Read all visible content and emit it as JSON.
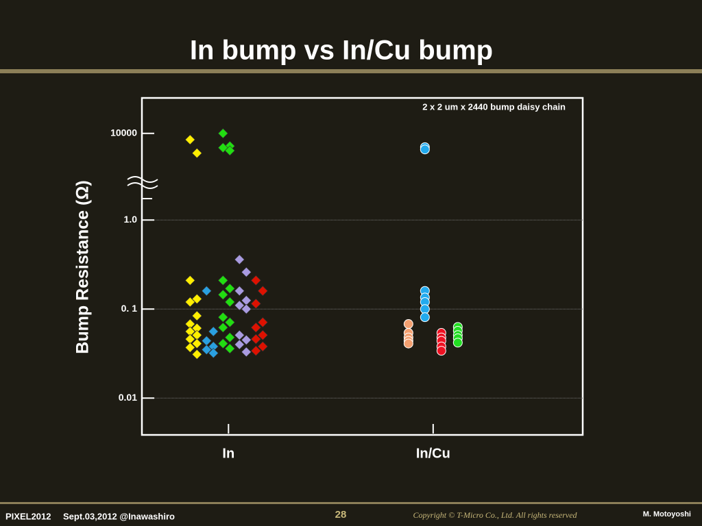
{
  "title": "In  bump vs In/Cu bump",
  "chart_data": {
    "type": "strip",
    "y_label": "Bump Resistance (Ω)",
    "annotation": "2 x 2 um x 2440 bump daisy chain",
    "log_y": true,
    "ylim": [
      0.004,
      25000
    ],
    "y_break": [
      1.5,
      4000
    ],
    "yticks": [
      0.01,
      {
        "value": 0.1,
        "label": "0. 1"
      },
      {
        "value": 1,
        "label": "1.0"
      },
      10000
    ],
    "grid": true,
    "categories": [
      "In",
      "In/Cu"
    ],
    "groups": [
      {
        "series": [
          {
            "color": "#ffee00",
            "marker": "diamond",
            "values": [
              8500,
              6000,
              0.21,
              0.13,
              0.12,
              0.084,
              0.068,
              0.061,
              0.056,
              0.051,
              0.046,
              0.041,
              0.037,
              0.031
            ]
          },
          {
            "color": "#2aa0e0",
            "marker": "diamond",
            "values": [
              0.16,
              0.056,
              0.044,
              0.038,
              0.035,
              0.032
            ]
          },
          {
            "color": "#22dd11",
            "marker": "diamond",
            "values": [
              10000,
              7200,
              6900,
              6400,
              0.21,
              0.17,
              0.145,
              0.12,
              0.081,
              0.071,
              0.062,
              0.048,
              0.041,
              0.036
            ]
          },
          {
            "color": "#a99be0",
            "marker": "diamond",
            "values": [
              0.36,
              0.26,
              0.16,
              0.125,
              0.11,
              0.1,
              0.051,
              0.045,
              0.04,
              0.033
            ]
          },
          {
            "color": "#dd1100",
            "marker": "diamond",
            "values": [
              0.21,
              0.16,
              0.115,
              0.071,
              0.062,
              0.051,
              0.046,
              0.038,
              0.034
            ]
          }
        ]
      },
      {
        "series": [
          {
            "color": "#f4a070",
            "marker": "circle",
            "values": [
              0.068,
              0.054,
              0.048,
              0.044,
              0.041
            ]
          },
          {
            "color": "#22aaee",
            "marker": "circle",
            "values": [
              7000,
              6600,
              0.16,
              0.135,
              0.12,
              0.1,
              0.081
            ]
          },
          {
            "color": "#ee1122",
            "marker": "circle",
            "values": [
              0.054,
              0.048,
              0.044,
              0.038,
              0.034
            ]
          },
          {
            "color": "#22dd22",
            "marker": "circle",
            "values": [
              0.063,
              0.057,
              0.051,
              0.047,
              0.042
            ]
          }
        ]
      }
    ]
  },
  "footer": {
    "event": "PIXEL2012",
    "place": "Sept.03,2012 @Inawashiro",
    "page": "28",
    "copyright": "Copyright © T-Micro Co., Ltd.  All rights reserved",
    "author": "M. Motoyoshi"
  }
}
